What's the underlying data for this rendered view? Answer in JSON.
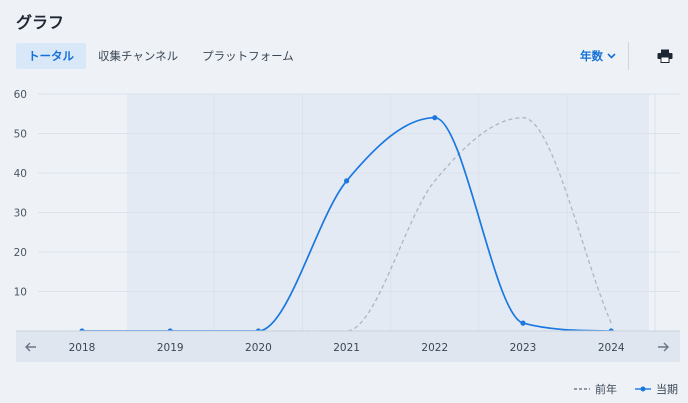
{
  "header": {
    "title": "グラフ"
  },
  "tabs": [
    {
      "label": "トータル",
      "active": true
    },
    {
      "label": "収集チャンネル",
      "active": false
    },
    {
      "label": "プラットフォーム",
      "active": false
    }
  ],
  "controls": {
    "year_label": "年数",
    "icons": [
      "chevron-down-icon",
      "print-icon",
      "arrow-left-icon",
      "arrow-right-icon"
    ]
  },
  "colors": {
    "current": "#1a78e0",
    "previous": "#adb6c2",
    "accent": "#1670d6"
  },
  "chart_data": {
    "type": "line",
    "categories": [
      "2018",
      "2019",
      "2020",
      "2021",
      "2022",
      "2023",
      "2024"
    ],
    "ylim": [
      0,
      60
    ],
    "yticks": [
      10,
      20,
      30,
      40,
      50,
      60
    ],
    "grid": true,
    "series": [
      {
        "name": "前年",
        "style": "dashed",
        "values": [
          0,
          0,
          0,
          0,
          38,
          54,
          2
        ]
      },
      {
        "name": "当期",
        "style": "solid",
        "markers": true,
        "values": [
          0,
          0,
          0,
          38,
          54,
          2,
          0
        ]
      }
    ],
    "legend": {
      "position": "bottom-right",
      "items": [
        "前年",
        "当期"
      ]
    }
  }
}
